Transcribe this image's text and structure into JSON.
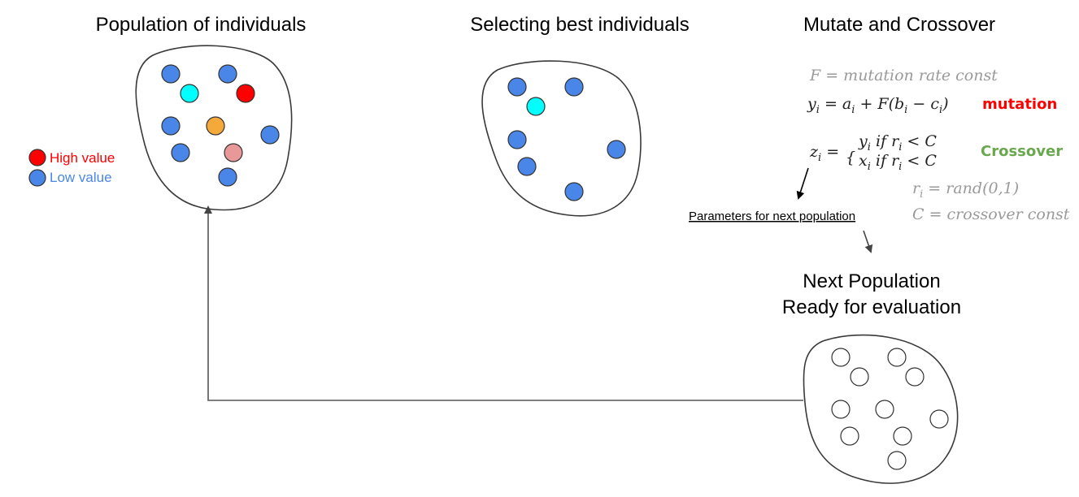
{
  "titles": {
    "population": "Population of individuals",
    "selecting": "Selecting best individuals",
    "mutate": "Mutate and Crossover",
    "next_line1": "Next Population",
    "next_line2": "Ready for evaluation"
  },
  "legend": {
    "high": "High value",
    "low": "Low value",
    "high_color": "#ff0000",
    "low_color": "#4a86e8"
  },
  "equations": {
    "f_def": "F = mutation rate const",
    "mutation_eq": "y",
    "mutation_label": "mutation",
    "mutation_color": "#ff0000",
    "crossover_label": "Crossover",
    "crossover_color": "#6aa84f",
    "r_def": "rand(0,1)",
    "c_def": "C = crossover const"
  },
  "note": "Parameters for next population",
  "colors": {
    "blue": "#4a86e8",
    "cyan": "#00ffff",
    "red": "#ff0000",
    "orange": "#f6a93b",
    "pink": "#e89898",
    "empty": "#ffffff"
  }
}
